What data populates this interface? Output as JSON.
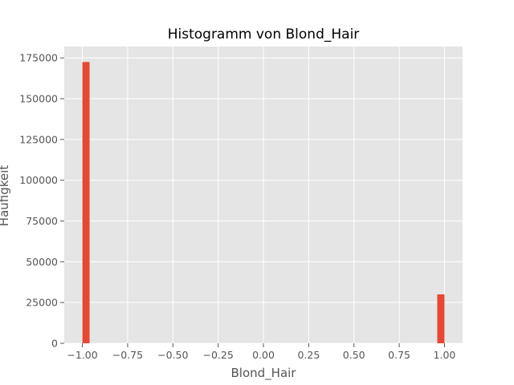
{
  "chart_data": {
    "type": "bar",
    "title": "Histogramm von Blond_Hair",
    "xlabel": "Blond_Hair",
    "ylabel": "Häufigkeit",
    "xlim": [
      -1.1,
      1.1
    ],
    "ylim": [
      0,
      182000
    ],
    "grid": true,
    "x_ticks": [
      -1.0,
      -0.75,
      -0.5,
      -0.25,
      0.0,
      0.25,
      0.5,
      0.75,
      1.0
    ],
    "x_tick_labels": [
      "−1.00",
      "−0.75",
      "−0.50",
      "−0.25",
      "0.00",
      "0.25",
      "0.50",
      "0.75",
      "1.00"
    ],
    "y_ticks": [
      0,
      25000,
      50000,
      75000,
      100000,
      125000,
      150000,
      175000
    ],
    "y_tick_labels": [
      "0",
      "25000",
      "50000",
      "75000",
      "100000",
      "125000",
      "150000",
      "175000"
    ],
    "bins": [
      {
        "x0": -1.0,
        "x1": -0.96,
        "count": 172500
      },
      {
        "x0": 0.96,
        "x1": 1.0,
        "count": 30000
      }
    ],
    "colors": {
      "bar": "#E24A33",
      "plot_background": "#E5E5E5",
      "grid": "#FFFFFF",
      "tick": "#555555"
    }
  }
}
